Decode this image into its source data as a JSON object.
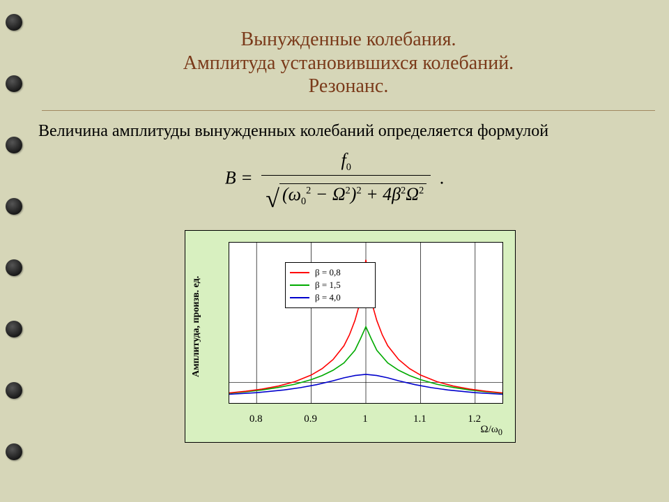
{
  "title": {
    "line1": "Вынужденные колебания.",
    "line2": "Амплитуда установившихся колебаний.",
    "line3": "Резонанс.",
    "color": "#7a3a1a",
    "fontsize": 28
  },
  "body_text": "Величина амплитуды вынужденных колебаний определяется формулой",
  "formula": {
    "lhs": "B =",
    "numerator": "f",
    "numerator_sub": "0",
    "period": "."
  },
  "chart": {
    "type": "line",
    "background_color": "#d8f0c0",
    "plot_background": "#ffffff",
    "border_color": "#000000",
    "ylabel": "Амплитуда, произв. ед.",
    "xlabel_html": "Ω/ω<sub>0</sub>",
    "xlim": [
      0.75,
      1.25
    ],
    "xticks": [
      0.8,
      0.9,
      1.0,
      1.1,
      1.2
    ],
    "xtick_labels": [
      "0.8",
      "0.9",
      "1",
      "1.1",
      "1.2"
    ],
    "ylim": [
      0,
      7.0
    ],
    "grid_color": "#000000",
    "line_width": 1.6,
    "legend": {
      "position": "upper-left-inside",
      "border_color": "#000000",
      "items": [
        {
          "label": "β = 0,8",
          "color": "#ff0000"
        },
        {
          "label": "β = 1,5",
          "color": "#00aa00"
        },
        {
          "label": "β = 4,0",
          "color": "#0000cc"
        }
      ]
    },
    "series": [
      {
        "name": "beta_0_8",
        "color": "#ff0000",
        "x": [
          0.75,
          0.78,
          0.81,
          0.84,
          0.87,
          0.9,
          0.92,
          0.94,
          0.96,
          0.97,
          0.98,
          0.99,
          0.995,
          1.0,
          1.005,
          1.01,
          1.02,
          1.03,
          1.04,
          1.06,
          1.08,
          1.1,
          1.13,
          1.16,
          1.19,
          1.22,
          1.25
        ],
        "y": [
          0.44,
          0.51,
          0.61,
          0.74,
          0.93,
          1.22,
          1.5,
          1.9,
          2.5,
          2.98,
          3.6,
          4.45,
          5.4,
          6.25,
          5.4,
          4.45,
          3.6,
          2.98,
          2.5,
          1.9,
          1.5,
          1.22,
          0.93,
          0.74,
          0.61,
          0.51,
          0.44
        ]
      },
      {
        "name": "beta_1_5",
        "color": "#00aa00",
        "x": [
          0.75,
          0.78,
          0.81,
          0.84,
          0.87,
          0.9,
          0.92,
          0.94,
          0.96,
          0.98,
          0.99,
          1.0,
          1.01,
          1.02,
          1.04,
          1.06,
          1.08,
          1.1,
          1.13,
          1.16,
          1.19,
          1.22,
          1.25
        ],
        "y": [
          0.43,
          0.49,
          0.57,
          0.68,
          0.82,
          1.02,
          1.2,
          1.43,
          1.75,
          2.3,
          2.8,
          3.33,
          2.8,
          2.3,
          1.75,
          1.43,
          1.2,
          1.02,
          0.82,
          0.68,
          0.57,
          0.49,
          0.43
        ]
      },
      {
        "name": "beta_4_0",
        "color": "#0000cc",
        "x": [
          0.75,
          0.8,
          0.85,
          0.88,
          0.91,
          0.94,
          0.96,
          0.98,
          1.0,
          1.02,
          1.04,
          1.06,
          1.09,
          1.12,
          1.15,
          1.2,
          1.25
        ],
        "y": [
          0.38,
          0.45,
          0.57,
          0.67,
          0.8,
          0.97,
          1.1,
          1.2,
          1.25,
          1.2,
          1.1,
          0.97,
          0.8,
          0.67,
          0.57,
          0.45,
          0.38
        ]
      }
    ]
  },
  "background_color": "#d6d6b8",
  "binder_hole_count": 8
}
